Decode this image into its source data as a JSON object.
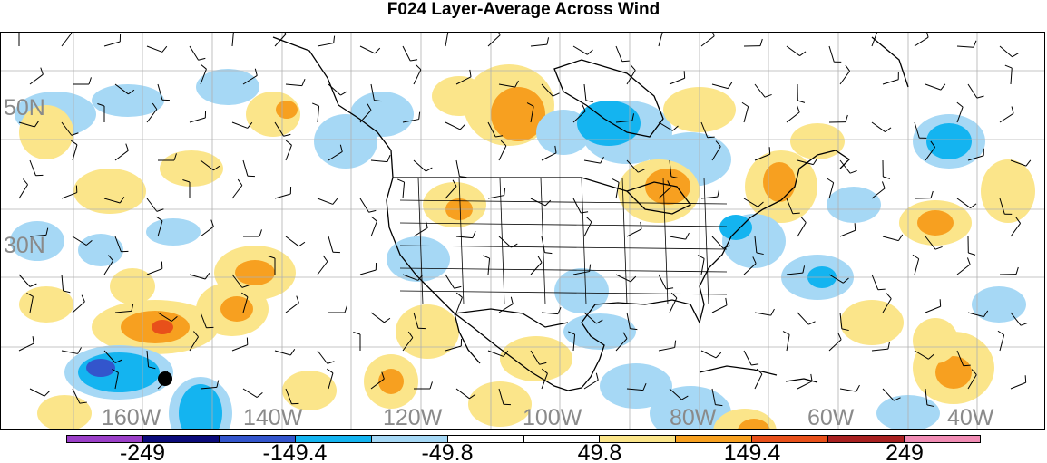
{
  "title": "F024 Layer-Average Across Wind",
  "lat_labels": [
    "50N",
    "30N"
  ],
  "lon_labels": [
    "160W",
    "140W",
    "120W",
    "100W",
    "80W",
    "60W",
    "40W"
  ],
  "colorbar": {
    "colors": [
      "#9b3fc8",
      "#0a0a7a",
      "#3355cc",
      "#14b4f0",
      "#a6d8f5",
      "#ffffff",
      "#ffffff",
      "#fbe58a",
      "#f7a020",
      "#e8501a",
      "#a82020",
      "#f08cb4"
    ],
    "labels": [
      "-249",
      "-149.4",
      "-49.8",
      "49.8",
      "149.4",
      "249"
    ]
  },
  "colors": {
    "light_blue": "#a6d8f5",
    "mid_blue": "#14b4f0",
    "dark_blue": "#3355cc",
    "light_yellow": "#fbe58a",
    "orange": "#f7a020",
    "red": "#e8501a",
    "grid": "#b0b0b0",
    "coast": "#000000"
  },
  "marker": "black-dot"
}
